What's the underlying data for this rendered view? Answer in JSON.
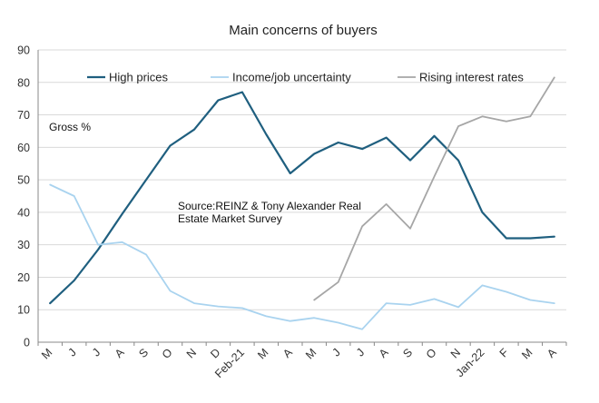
{
  "chart_data": {
    "type": "line",
    "title": "Main concerns of buyers",
    "ylabel": "Gross %",
    "ylim": [
      0,
      90
    ],
    "yticks": [
      0,
      10,
      20,
      30,
      40,
      50,
      60,
      70,
      80,
      90
    ],
    "grid": "horizontal",
    "legend": "top",
    "categories": [
      "M",
      "J",
      "J",
      "A",
      "S",
      "O",
      "N",
      "D",
      "Feb-21",
      "M",
      "A",
      "M",
      "J",
      "J",
      "A",
      "S",
      "O",
      "N",
      "Jan-22",
      "F",
      "M",
      "A"
    ],
    "series": [
      {
        "name": "High prices",
        "color": "#1f5f7f",
        "values": [
          12,
          19,
          28.5,
          39.5,
          50,
          60.5,
          65.5,
          74.5,
          77,
          64,
          52,
          58,
          61.5,
          59.5,
          63,
          56,
          63.5,
          56,
          40,
          32,
          32,
          32.5
        ]
      },
      {
        "name": "Income/job uncertainty",
        "color": "#a9d3ef",
        "values": [
          48.5,
          45,
          30,
          30.8,
          27,
          15.8,
          12,
          11,
          10.5,
          8,
          6.5,
          7.5,
          6,
          4,
          12,
          11.5,
          13.3,
          10.8,
          17.5,
          15.5,
          13,
          12
        ]
      },
      {
        "name": "Rising interest rates",
        "color": "#a6a6a6",
        "values": [
          null,
          null,
          null,
          null,
          null,
          null,
          null,
          null,
          null,
          null,
          null,
          13,
          18.5,
          35.7,
          42.5,
          35,
          51,
          66.5,
          69.5,
          68,
          69.5,
          81.5
        ]
      }
    ],
    "annotations": [
      {
        "text": "Gross %"
      },
      {
        "text": "Source:REINZ & Tony Alexander Real"
      },
      {
        "text": "Estate Market Survey"
      }
    ]
  }
}
